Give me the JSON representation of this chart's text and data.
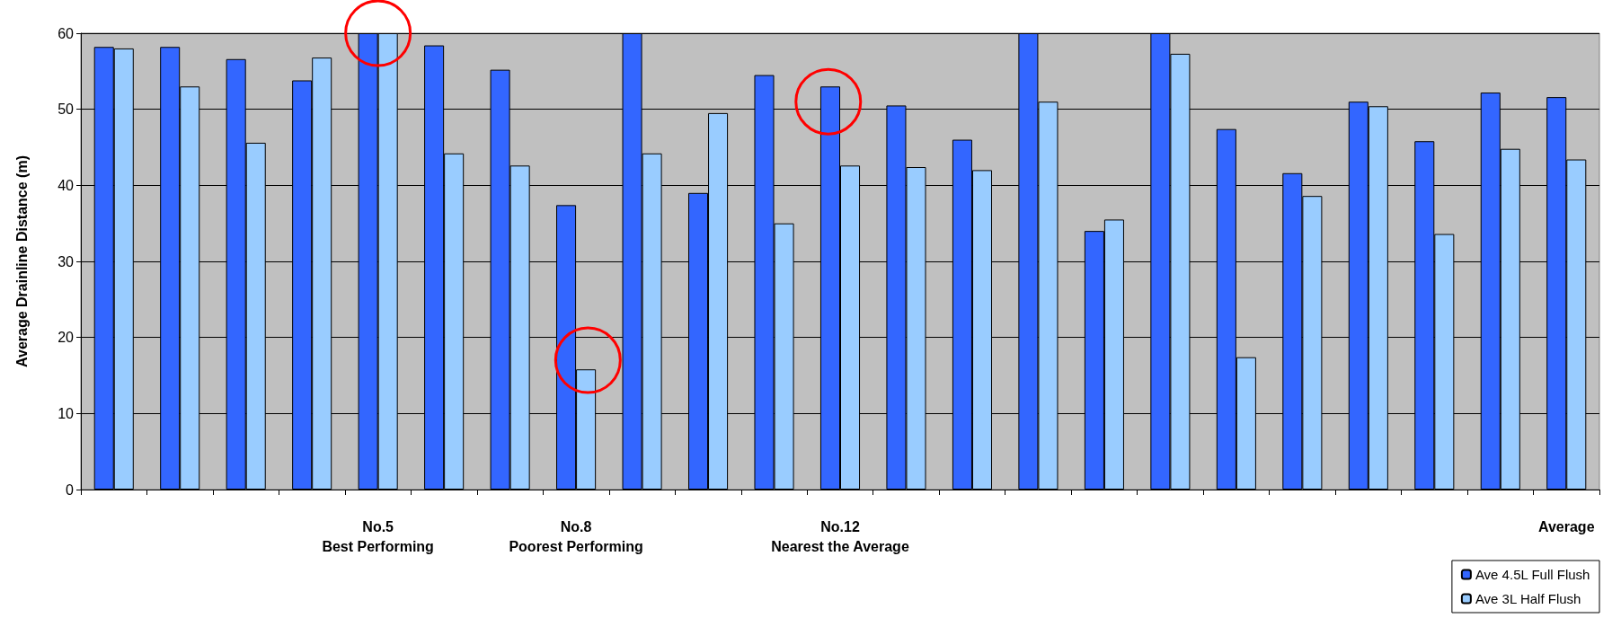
{
  "chart_data": {
    "type": "bar",
    "ylabel": "Average Drainline Distance (m)",
    "categories": [
      null,
      null,
      null,
      null,
      "No.5\nBest Performing",
      null,
      null,
      "No.8\nPoorest Performing",
      null,
      null,
      null,
      "No.12\nNearest the Average",
      null,
      null,
      null,
      null,
      null,
      null,
      null,
      null,
      null,
      null,
      "Average"
    ],
    "series": [
      {
        "name": "Ave 4.5L Full Flush",
        "color": "#3366ff",
        "values": [
          58.2,
          58.2,
          56.6,
          53.8,
          60,
          58.4,
          55.2,
          37.4,
          60,
          39,
          54.5,
          53,
          50.5,
          46,
          60,
          34,
          60,
          47.4,
          41.6,
          51,
          45.8,
          52.2,
          51.6
        ]
      },
      {
        "name": "Ave 3L Half Flush",
        "color": "#99ccff",
        "values": [
          58,
          53,
          45.6,
          56.8,
          60,
          44.2,
          42.6,
          15.8,
          44.2,
          49.5,
          35,
          42.6,
          42.4,
          42,
          51,
          35.5,
          57.3,
          17.4,
          38.6,
          50.4,
          33.6,
          44.8,
          43.4
        ]
      }
    ],
    "ylim": [
      0,
      60
    ],
    "yticks": [
      0,
      10,
      20,
      30,
      40,
      50,
      60
    ],
    "grid": "y",
    "legend": "bottom right"
  }
}
